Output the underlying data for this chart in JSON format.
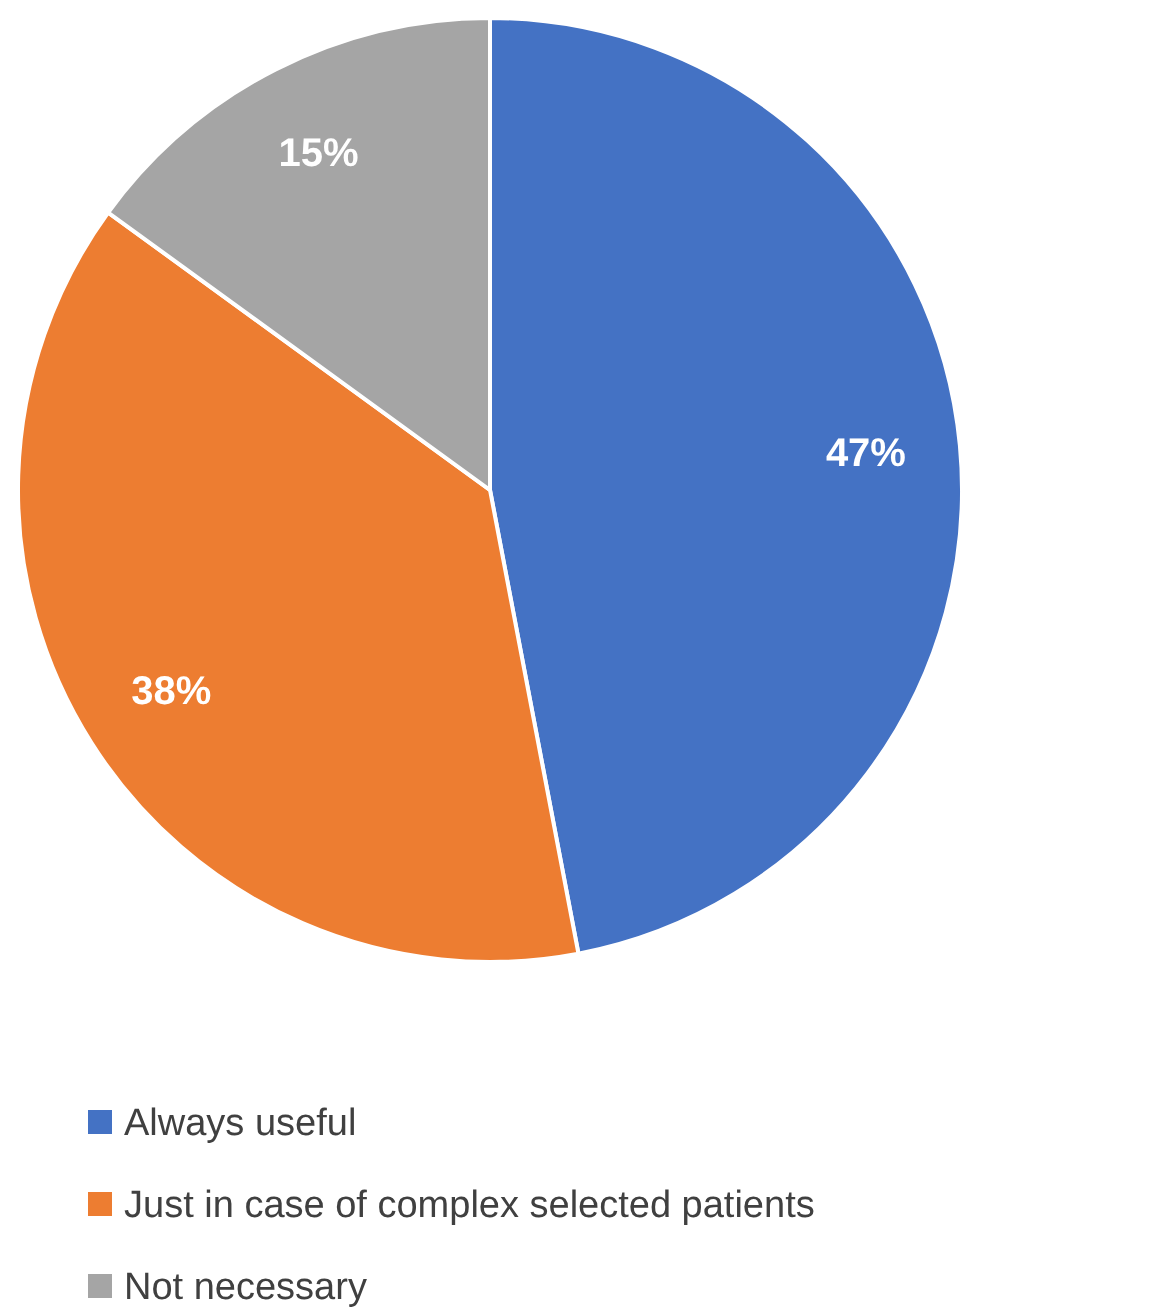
{
  "chart_data": {
    "type": "pie",
    "categories": [
      "Always useful",
      "Just in case of complex selected patients",
      "Not necessary"
    ],
    "values": [
      47,
      38,
      15
    ],
    "colors": [
      "#4472c4",
      "#ed7d31",
      "#a5a5a5"
    ],
    "value_labels": [
      "47%",
      "38%",
      "15%"
    ],
    "legend": "bottom"
  }
}
